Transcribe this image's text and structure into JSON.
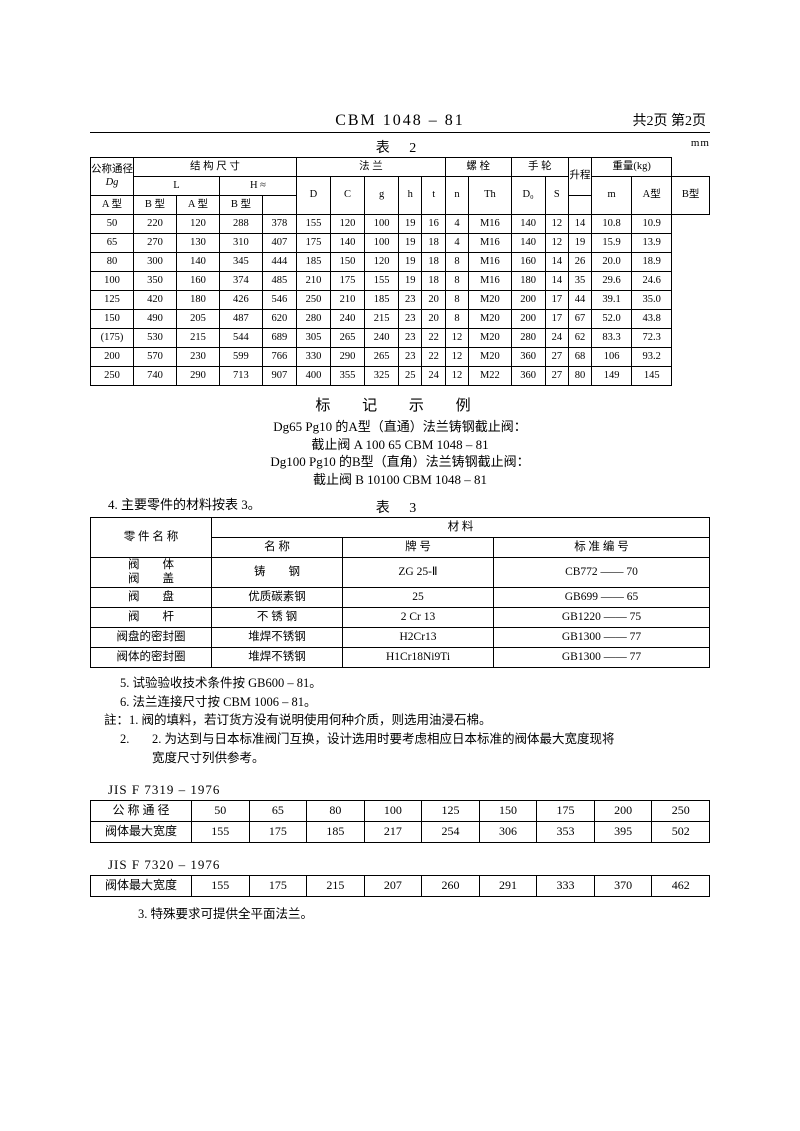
{
  "header": {
    "center": "CBM 1048 – 81",
    "right": "共2页 第2页"
  },
  "table2": {
    "caption": "表 2",
    "unit": "mm",
    "group_headers": {
      "dg": "公称通径",
      "dg_sub": "Dg",
      "struct": "结 构 尺 寸",
      "L": "L",
      "H": "H ≈",
      "flange": "法    兰",
      "bolt": "螺  栓",
      "wheel": "手 轮",
      "lift": "升程",
      "weight": "重量(kg)"
    },
    "sub_headers": [
      "A 型",
      "B 型",
      "A 型",
      "B 型",
      "D",
      "C",
      "g",
      "h",
      "t",
      "n",
      "Th",
      "D₀",
      "S",
      "m",
      "A型",
      "B型"
    ],
    "rows": [
      [
        "50",
        "220",
        "120",
        "288",
        "378",
        "155",
        "120",
        "100",
        "19",
        "16",
        "4",
        "M16",
        "140",
        "12",
        "14",
        "10.8",
        "10.9"
      ],
      [
        "65",
        "270",
        "130",
        "310",
        "407",
        "175",
        "140",
        "100",
        "19",
        "18",
        "4",
        "M16",
        "140",
        "12",
        "19",
        "15.9",
        "13.9"
      ],
      [
        "80",
        "300",
        "140",
        "345",
        "444",
        "185",
        "150",
        "120",
        "19",
        "18",
        "8",
        "M16",
        "160",
        "14",
        "26",
        "20.0",
        "18.9"
      ],
      [
        "100",
        "350",
        "160",
        "374",
        "485",
        "210",
        "175",
        "155",
        "19",
        "18",
        "8",
        "M16",
        "180",
        "14",
        "35",
        "29.6",
        "24.6"
      ],
      [
        "125",
        "420",
        "180",
        "426",
        "546",
        "250",
        "210",
        "185",
        "23",
        "20",
        "8",
        "M20",
        "200",
        "17",
        "44",
        "39.1",
        "35.0"
      ],
      [
        "150",
        "490",
        "205",
        "487",
        "620",
        "280",
        "240",
        "215",
        "23",
        "20",
        "8",
        "M20",
        "200",
        "17",
        "67",
        "52.0",
        "43.8"
      ],
      [
        "(175)",
        "530",
        "215",
        "544",
        "689",
        "305",
        "265",
        "240",
        "23",
        "22",
        "12",
        "M20",
        "280",
        "24",
        "62",
        "83.3",
        "72.3"
      ],
      [
        "200",
        "570",
        "230",
        "599",
        "766",
        "330",
        "290",
        "265",
        "23",
        "22",
        "12",
        "M20",
        "360",
        "27",
        "68",
        "106",
        "93.2"
      ],
      [
        "250",
        "740",
        "290",
        "713",
        "907",
        "400",
        "355",
        "325",
        "25",
        "24",
        "12",
        "M22",
        "360",
        "27",
        "80",
        "149",
        "145"
      ]
    ]
  },
  "example": {
    "title": "标 记 示 例",
    "line1": "Dg65 Pg10 的A型（直通）法兰铸钢截止阀：",
    "line2": "截止阀 A 100 65  CBM 1048 – 81",
    "line3": "Dg100 Pg10 的B型（直角）法兰铸钢截止阀：",
    "line4": "截止阀 B 10100  CBM 1048 – 81"
  },
  "section4": "4. 主要零件的材料按表 3。",
  "table3": {
    "caption": "表 3",
    "head_part": "零 件 名 称",
    "head_mat": "材            料",
    "head_name": "名      称",
    "head_grade": "牌      号",
    "head_std": "标 准 编 号",
    "rows": [
      {
        "pn": "阀　　体\n阀　　盖",
        "mn": "铸　　钢",
        "gr": "ZG 25-Ⅱ",
        "std": "CB772 —— 70"
      },
      {
        "pn": "阀　　盘",
        "mn": "优质碳素钢",
        "gr": "25",
        "std": "GB699 —— 65"
      },
      {
        "pn": "阀　　杆",
        "mn": "不 锈 钢",
        "gr": "2 Cr 13",
        "std": "GB1220 —— 75"
      },
      {
        "pn": "阀盘的密封圈",
        "mn": "堆焊不锈钢",
        "gr": "H2Cr13",
        "std": "GB1300 —— 77"
      },
      {
        "pn": "阀体的密封圈",
        "mn": "堆焊不锈钢",
        "gr": "H1Cr18Ni9Ti",
        "std": "GB1300 —— 77"
      }
    ]
  },
  "notes": {
    "n5": "5.  试验验收技术条件按 GB600 – 81。",
    "n6": "6.  法兰连接尺寸按 CBM 1006 – 81。",
    "zhu": "註：1.  阀的填料，若订货方没有说明使用何种介质，则选用油浸石棉。",
    "zhu2": "2.  为达到与日本标准阀门互换，设计选用时要考虑相应日本标准的阀体最大宽度现将",
    "zhu2b": "宽度尺寸列供参考。"
  },
  "jis1": {
    "label": "JIS F 7319 – 1976",
    "row1_label": "公 称 通 径",
    "row1": [
      "50",
      "65",
      "80",
      "100",
      "125",
      "150",
      "175",
      "200",
      "250"
    ],
    "row2_label": "阀体最大宽度",
    "row2": [
      "155",
      "175",
      "185",
      "217",
      "254",
      "306",
      "353",
      "395",
      "502"
    ]
  },
  "jis2": {
    "label": "JIS F 7320 – 1976",
    "row_label": "阀体最大宽度",
    "row": [
      "155",
      "175",
      "215",
      "207",
      "260",
      "291",
      "333",
      "370",
      "462"
    ]
  },
  "final": "3.  特殊要求可提供全平面法兰。"
}
